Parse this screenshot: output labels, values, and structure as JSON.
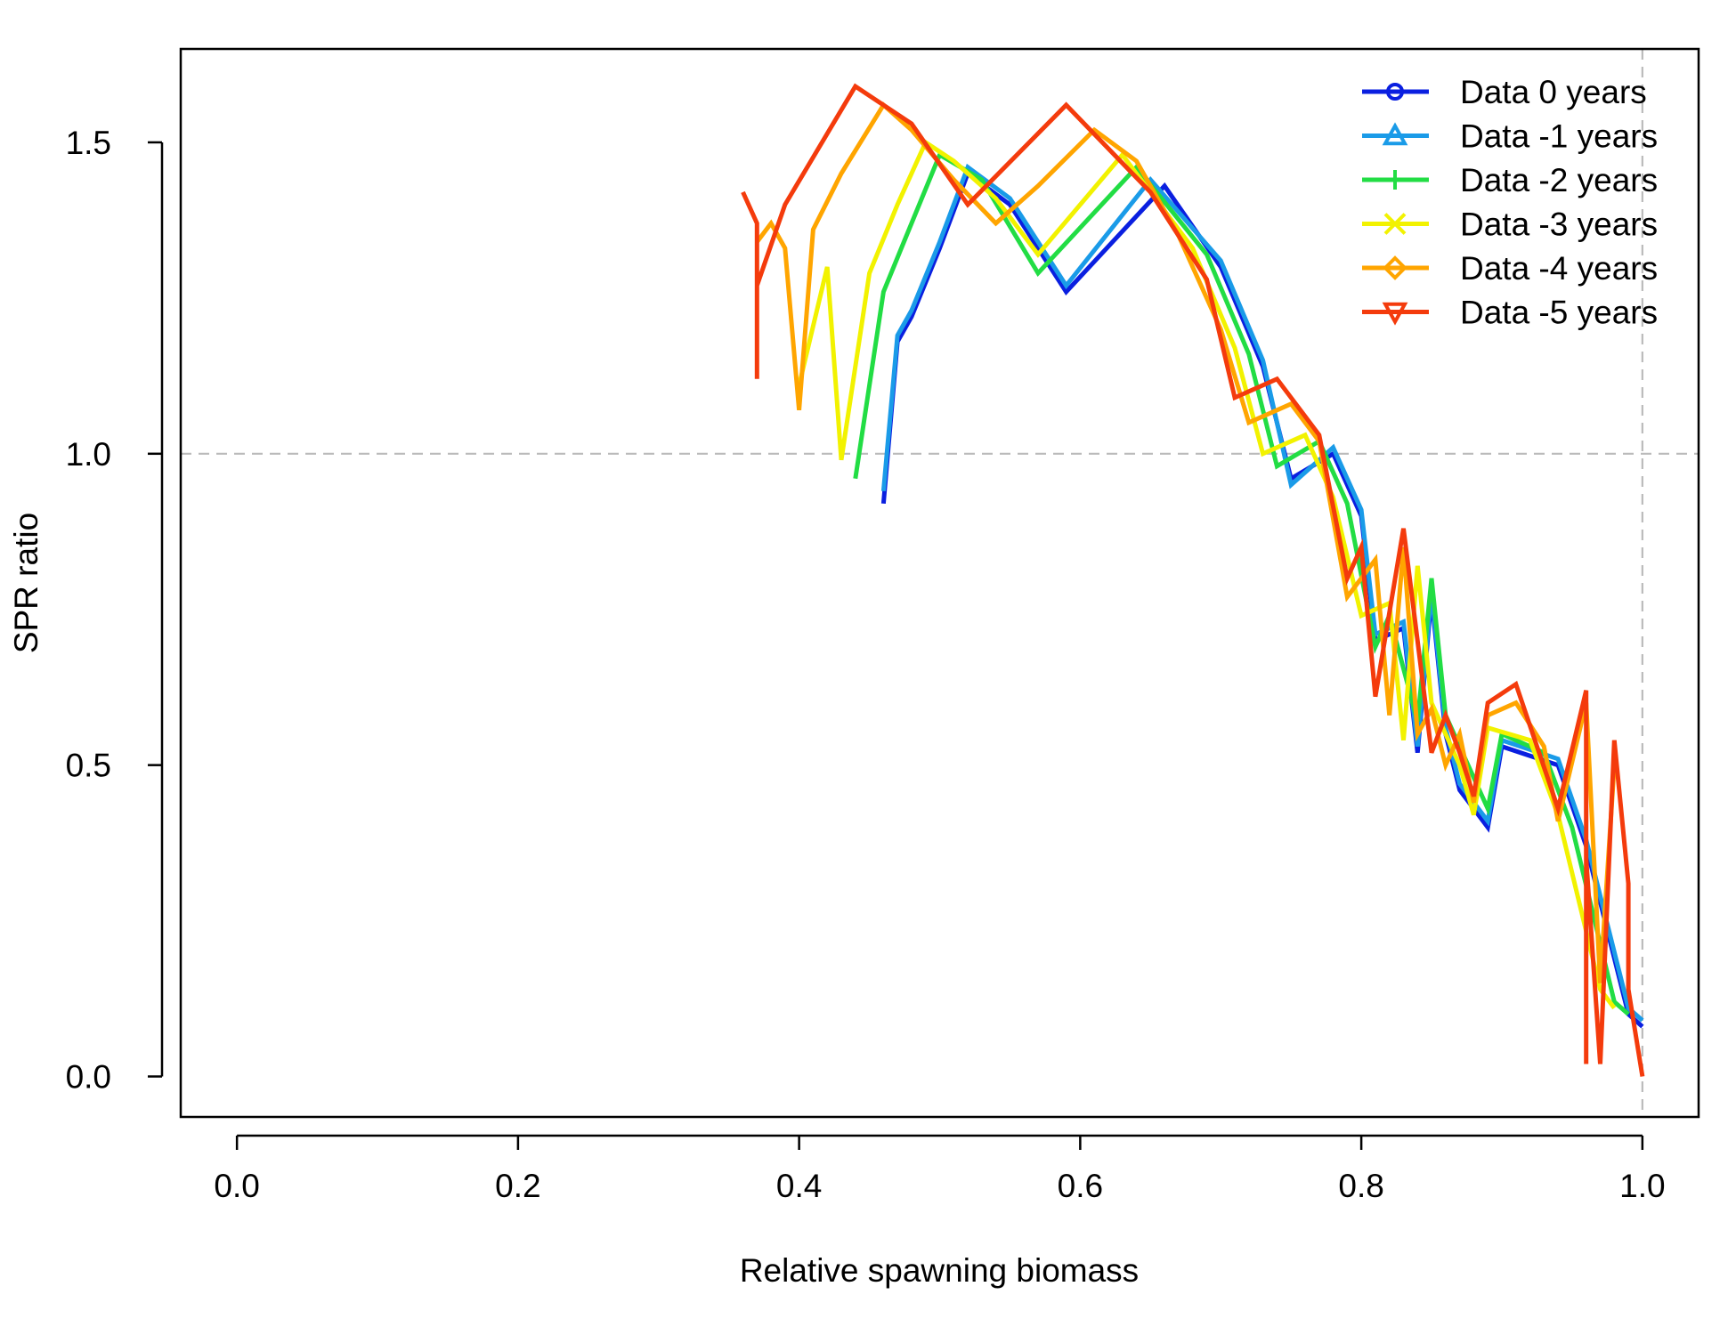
{
  "chart_data": {
    "type": "line",
    "title": "",
    "xlabel": "Relative spawning biomass",
    "ylabel": "SPR ratio",
    "xlim": [
      -0.04,
      1.04
    ],
    "ylim": [
      -0.065,
      1.65
    ],
    "xticks": [
      "0.0",
      "0.2",
      "0.4",
      "0.6",
      "0.8",
      "1.0"
    ],
    "yticks": [
      "0.0",
      "0.5",
      "1.0",
      "1.5"
    ],
    "reference_lines": {
      "x": 1.0,
      "y": 1.0,
      "color": "#bbbbbb",
      "style": "dashed"
    },
    "grid": false,
    "legend_position": "top-right",
    "series": [
      {
        "name": "Data 0 years",
        "color": "#0a1fe0",
        "marker": "circle",
        "x": [
          0.46,
          0.47,
          0.48,
          0.5,
          0.52,
          0.55,
          0.59,
          0.66,
          0.7,
          0.73,
          0.75,
          0.78,
          0.8,
          0.81,
          0.83,
          0.84,
          0.85,
          0.86,
          0.87,
          0.89,
          0.9,
          0.94,
          0.96,
          0.99,
          1.0
        ],
        "y": [
          0.92,
          1.18,
          1.22,
          1.33,
          1.45,
          1.4,
          1.26,
          1.43,
          1.3,
          1.14,
          0.96,
          1.0,
          0.9,
          0.7,
          0.72,
          0.52,
          0.77,
          0.55,
          0.46,
          0.4,
          0.53,
          0.5,
          0.37,
          0.1,
          0.08
        ]
      },
      {
        "name": "Data -1 years",
        "color": "#1a9be8",
        "marker": "triangle-up",
        "x": [
          0.46,
          0.47,
          0.48,
          0.5,
          0.52,
          0.55,
          0.59,
          0.65,
          0.7,
          0.73,
          0.75,
          0.78,
          0.8,
          0.81,
          0.83,
          0.84,
          0.85,
          0.86,
          0.87,
          0.89,
          0.9,
          0.94,
          0.96,
          0.99,
          1.0
        ],
        "y": [
          0.94,
          1.19,
          1.23,
          1.34,
          1.46,
          1.41,
          1.27,
          1.44,
          1.31,
          1.15,
          0.95,
          1.01,
          0.91,
          0.71,
          0.73,
          0.53,
          0.78,
          0.56,
          0.47,
          0.41,
          0.54,
          0.51,
          0.38,
          0.11,
          0.09
        ]
      },
      {
        "name": "Data -2 years",
        "color": "#22dd44",
        "marker": "plus",
        "x": [
          0.44,
          0.46,
          0.48,
          0.5,
          0.53,
          0.57,
          0.64,
          0.69,
          0.72,
          0.74,
          0.77,
          0.79,
          0.81,
          0.82,
          0.84,
          0.85,
          0.86,
          0.88,
          0.89,
          0.9,
          0.93,
          0.95,
          0.98,
          0.99
        ],
        "y": [
          0.96,
          1.26,
          1.37,
          1.48,
          1.44,
          1.29,
          1.46,
          1.32,
          1.16,
          0.98,
          1.02,
          0.92,
          0.69,
          0.74,
          0.57,
          0.8,
          0.58,
          0.48,
          0.43,
          0.55,
          0.52,
          0.4,
          0.12,
          0.1
        ]
      },
      {
        "name": "Data -3 years",
        "color": "#f2f200",
        "marker": "x",
        "x": [
          0.4,
          0.42,
          0.43,
          0.45,
          0.47,
          0.49,
          0.51,
          0.54,
          0.57,
          0.63,
          0.68,
          0.71,
          0.73,
          0.76,
          0.78,
          0.8,
          0.82,
          0.83,
          0.84,
          0.85,
          0.87,
          0.88,
          0.89,
          0.92,
          0.94,
          0.97,
          0.98
        ],
        "y": [
          1.11,
          1.3,
          0.99,
          1.29,
          1.4,
          1.5,
          1.47,
          1.41,
          1.32,
          1.48,
          1.33,
          1.17,
          1.0,
          1.03,
          0.93,
          0.74,
          0.76,
          0.54,
          0.82,
          0.6,
          0.5,
          0.42,
          0.56,
          0.54,
          0.42,
          0.14,
          0.11
        ]
      },
      {
        "name": "Data -4 years",
        "color": "#ffa500",
        "marker": "diamond",
        "x": [
          0.37,
          0.38,
          0.39,
          0.4,
          0.41,
          0.43,
          0.46,
          0.48,
          0.51,
          0.54,
          0.57,
          0.61,
          0.64,
          0.67,
          0.7,
          0.72,
          0.75,
          0.77,
          0.79,
          0.81,
          0.82,
          0.83,
          0.84,
          0.85,
          0.86,
          0.87,
          0.88,
          0.89,
          0.91,
          0.93,
          0.94,
          0.96,
          0.97,
          0.98
        ],
        "y": [
          1.34,
          1.37,
          1.33,
          1.07,
          1.36,
          1.45,
          1.56,
          1.52,
          1.44,
          1.37,
          1.43,
          1.52,
          1.47,
          1.35,
          1.2,
          1.05,
          1.08,
          1.02,
          0.77,
          0.83,
          0.58,
          0.85,
          0.55,
          0.59,
          0.5,
          0.55,
          0.44,
          0.58,
          0.6,
          0.53,
          0.41,
          0.6,
          0.15,
          0.5
        ]
      },
      {
        "name": "Data -5 years",
        "color": "#f43b0c",
        "marker": "triangle-down",
        "x": [
          0.36,
          0.37,
          0.37,
          0.37,
          0.39,
          0.44,
          0.48,
          0.52,
          0.59,
          0.65,
          0.69,
          0.71,
          0.74,
          0.77,
          0.79,
          0.8,
          0.81,
          0.83,
          0.85,
          0.86,
          0.87,
          0.88,
          0.89,
          0.91,
          0.94,
          0.96,
          0.96,
          0.96,
          0.97,
          0.98,
          0.99,
          0.99,
          1.0
        ],
        "y": [
          1.42,
          1.37,
          1.12,
          1.27,
          1.4,
          1.59,
          1.53,
          1.4,
          1.56,
          1.42,
          1.28,
          1.09,
          1.12,
          1.03,
          0.8,
          0.85,
          0.61,
          0.88,
          0.52,
          0.58,
          0.52,
          0.45,
          0.6,
          0.63,
          0.43,
          0.62,
          0.02,
          0.35,
          0.02,
          0.54,
          0.31,
          0.14,
          0.0
        ]
      }
    ]
  }
}
